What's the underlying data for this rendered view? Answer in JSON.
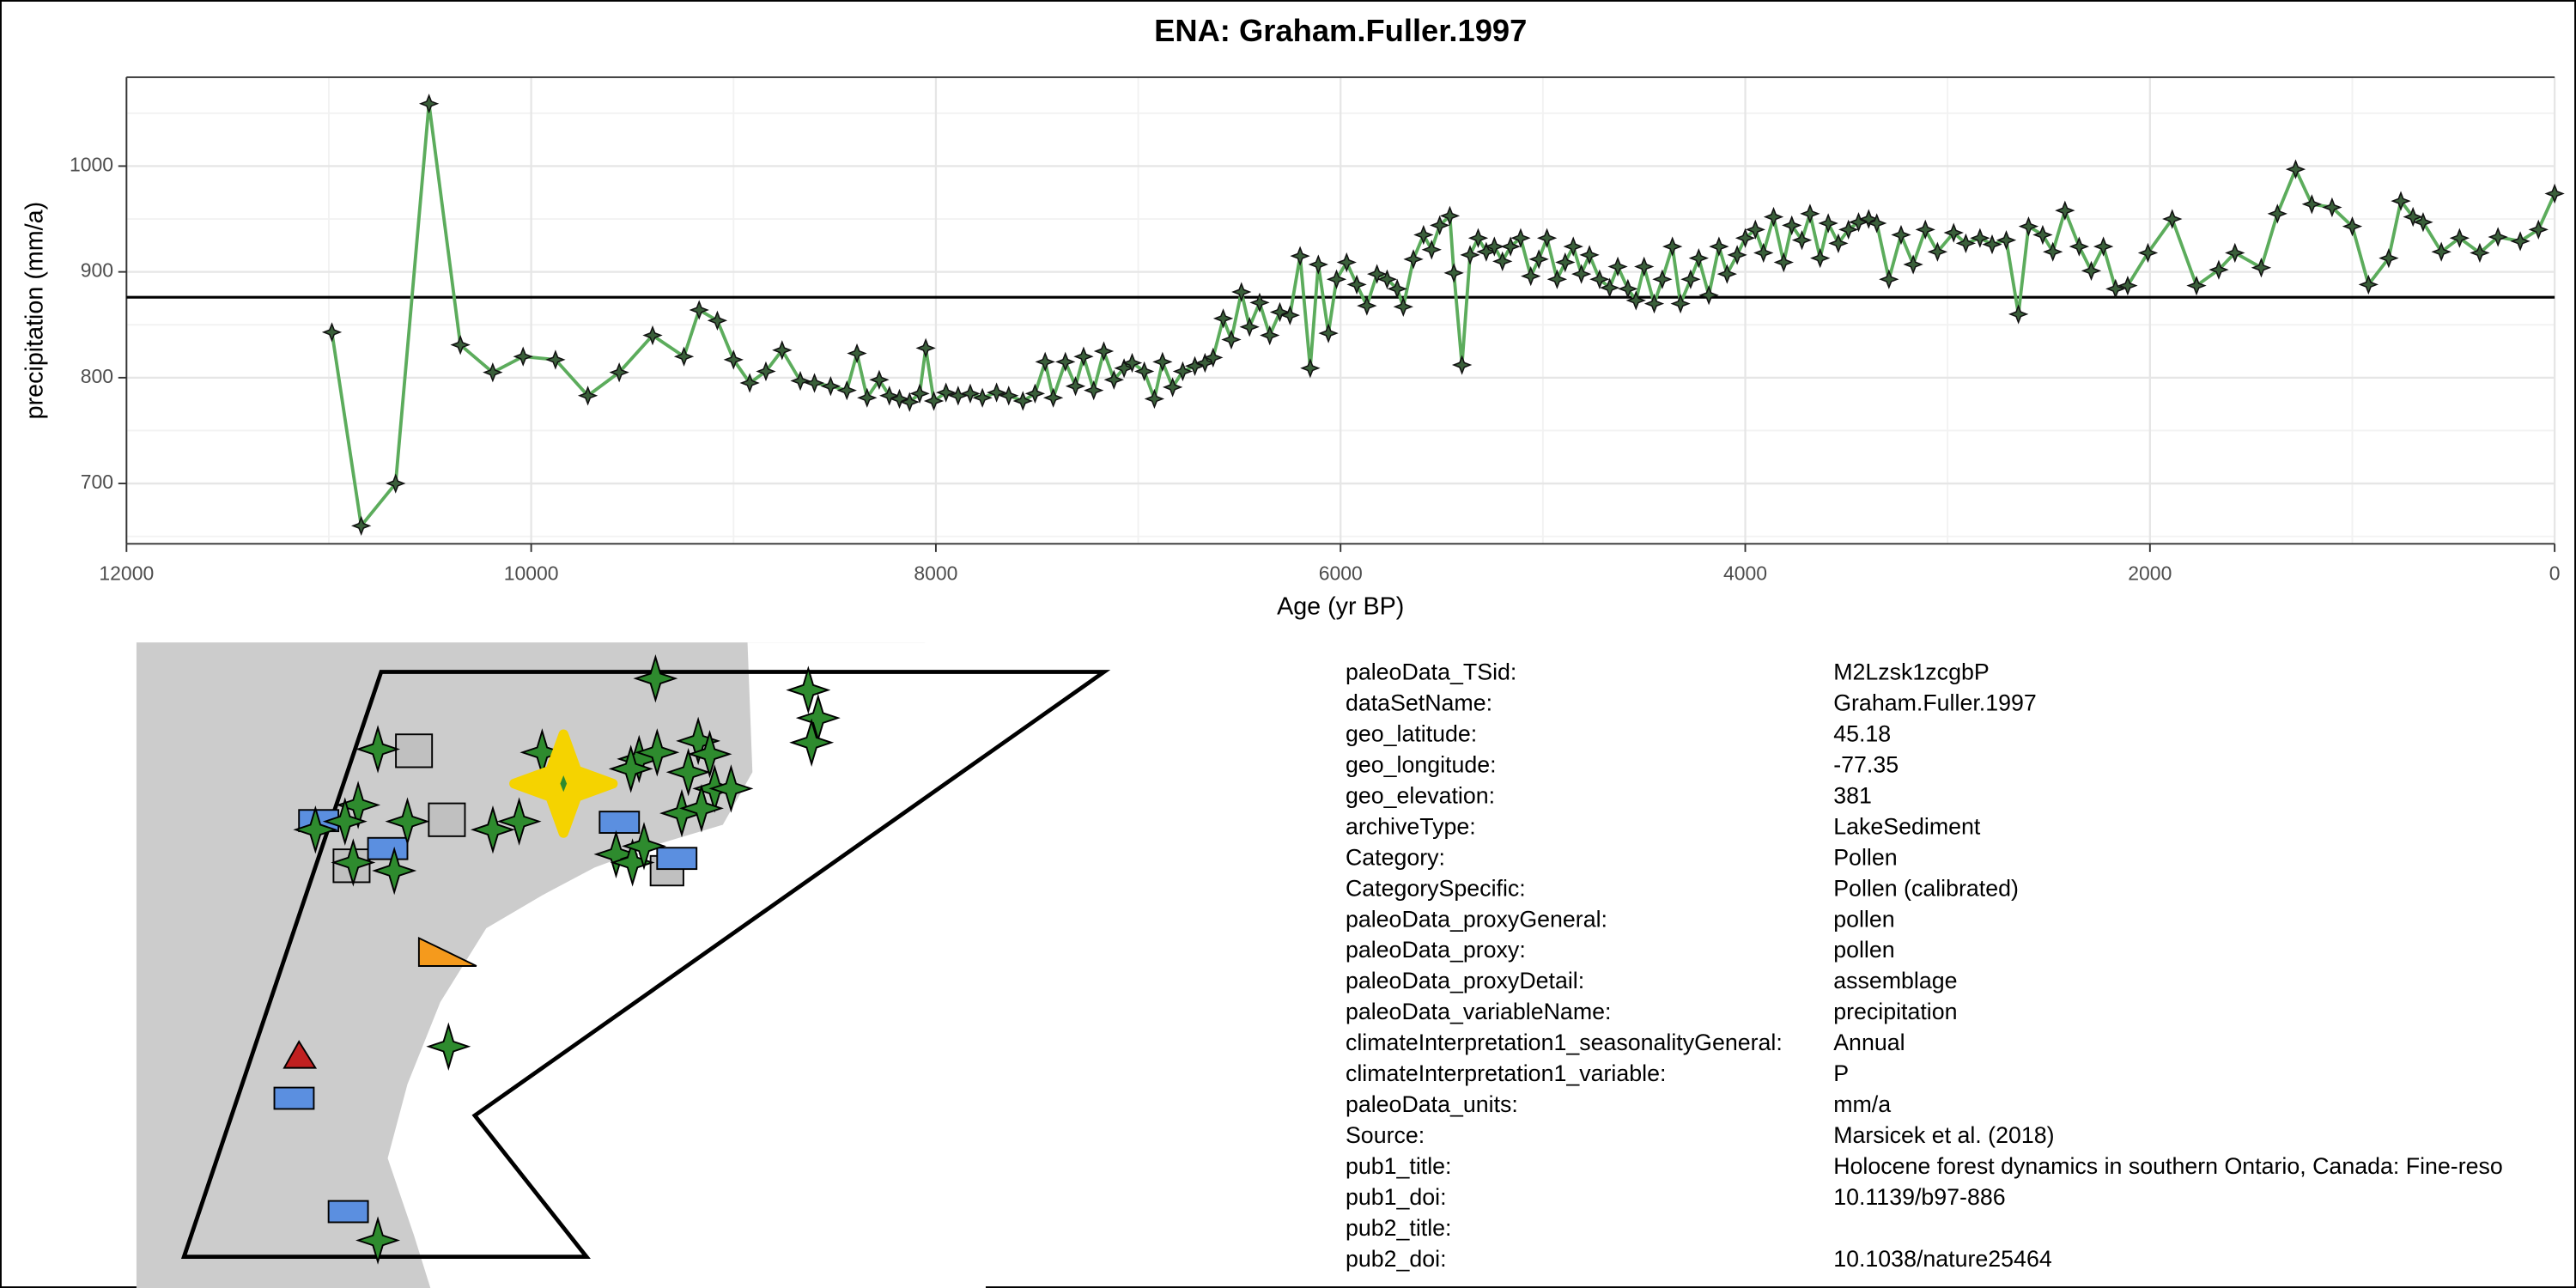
{
  "chart_data": {
    "type": "line",
    "title": "ENA: Graham.Fuller.1997",
    "xlabel": "Age (yr BP)",
    "ylabel": "precipitation (mm/a)",
    "xlim": [
      12000,
      0
    ],
    "ylim": [
      643,
      1084
    ],
    "xticks": [
      12000,
      10000,
      8000,
      6000,
      4000,
      2000,
      0
    ],
    "yticks": [
      700,
      800,
      900,
      1000
    ],
    "grid": true,
    "hline": 876,
    "color": "#5cac5c",
    "x": [
      10985,
      10840,
      10670,
      10505,
      10350,
      10190,
      10040,
      9880,
      9720,
      9565,
      9400,
      9245,
      9170,
      9080,
      9000,
      8920,
      8840,
      8760,
      8670,
      8600,
      8520,
      8440,
      8390,
      8340,
      8280,
      8230,
      8180,
      8130,
      8080,
      8050,
      8010,
      7950,
      7890,
      7830,
      7770,
      7700,
      7640,
      7570,
      7510,
      7460,
      7420,
      7360,
      7310,
      7270,
      7220,
      7170,
      7120,
      7070,
      7030,
      6970,
      6920,
      6880,
      6830,
      6780,
      6720,
      6670,
      6630,
      6580,
      6540,
      6490,
      6450,
      6400,
      6350,
      6300,
      6250,
      6200,
      6150,
      6110,
      6060,
      6020,
      5970,
      5920,
      5870,
      5820,
      5770,
      5720,
      5690,
      5640,
      5590,
      5550,
      5510,
      5460,
      5440,
      5400,
      5360,
      5320,
      5280,
      5240,
      5200,
      5160,
      5110,
      5060,
      5020,
      4980,
      4930,
      4890,
      4850,
      4810,
      4770,
      4720,
      4670,
      4630,
      4580,
      4540,
      4500,
      4450,
      4410,
      4360,
      4320,
      4270,
      4230,
      4180,
      4130,
      4090,
      4040,
      4000,
      3950,
      3910,
      3860,
      3810,
      3770,
      3720,
      3680,
      3630,
      3590,
      3540,
      3490,
      3440,
      3390,
      3350,
      3290,
      3230,
      3170,
      3110,
      3050,
      2970,
      2910,
      2840,
      2780,
      2710,
      2650,
      2600,
      2530,
      2480,
      2420,
      2350,
      2290,
      2230,
      2170,
      2110,
      2010,
      1890,
      1770,
      1660,
      1580,
      1450,
      1370,
      1280,
      1200,
      1100,
      1000,
      920,
      820,
      760,
      700,
      650,
      560,
      470,
      370,
      280,
      170,
      80,
      0
    ],
    "values": [
      843,
      660,
      700,
      1059,
      831,
      805,
      820,
      817,
      783,
      805,
      840,
      820,
      864,
      854,
      817,
      795,
      806,
      826,
      797,
      795,
      792,
      788,
      823,
      781,
      798,
      783,
      780,
      777,
      785,
      828,
      778,
      786,
      783,
      785,
      781,
      786,
      783,
      778,
      785,
      815,
      781,
      815,
      792,
      820,
      788,
      825,
      798,
      809,
      814,
      806,
      780,
      815,
      791,
      806,
      811,
      814,
      819,
      856,
      836,
      881,
      848,
      871,
      840,
      862,
      859,
      915,
      809,
      907,
      842,
      893,
      909,
      888,
      868,
      898,
      893,
      884,
      867,
      912,
      935,
      921,
      944,
      953,
      899,
      812,
      916,
      932,
      919,
      924,
      910,
      924,
      932,
      896,
      912,
      932,
      893,
      909,
      924,
      898,
      916,
      893,
      885,
      905,
      884,
      873,
      905,
      870,
      893,
      924,
      870,
      893,
      913,
      878,
      924,
      898,
      916,
      932,
      940,
      918,
      952,
      909,
      944,
      930,
      955,
      913,
      946,
      927,
      940,
      947,
      950,
      946,
      893,
      935,
      907,
      940,
      919,
      937,
      927,
      932,
      926,
      930,
      860,
      943,
      935,
      919,
      958,
      924,
      901,
      924,
      884,
      887,
      918,
      950,
      887,
      902,
      918,
      904,
      955,
      997,
      964,
      961,
      943,
      888,
      913,
      967,
      952,
      947,
      919,
      932,
      918,
      933,
      929,
      940,
      974
    ]
  },
  "metadata": {
    "rows": [
      [
        "paleoData_TSid:",
        "M2Lzsk1zcgbP"
      ],
      [
        "dataSetName:",
        "Graham.Fuller.1997"
      ],
      [
        "geo_latitude:",
        "45.18"
      ],
      [
        "geo_longitude:",
        "-77.35"
      ],
      [
        "geo_elevation:",
        "381"
      ],
      [
        "archiveType:",
        "LakeSediment"
      ],
      [
        "Category:",
        "Pollen"
      ],
      [
        "CategorySpecific:",
        "Pollen (calibrated)"
      ],
      [
        "paleoData_proxyGeneral:",
        "pollen"
      ],
      [
        "paleoData_proxy:",
        "pollen"
      ],
      [
        "paleoData_proxyDetail:",
        "assemblage"
      ],
      [
        "paleoData_variableName:",
        "precipitation"
      ],
      [
        "climateInterpretation1_seasonalityGeneral:",
        "Annual"
      ],
      [
        "climateInterpretation1_variable:",
        "P"
      ],
      [
        "paleoData_units:",
        "mm/a"
      ],
      [
        "Source:",
        "Marsicek et al. (2018)"
      ],
      [
        "pub1_title:",
        "Holocene forest dynamics in southern Ontario, Canada: Fine-reso"
      ],
      [
        "pub1_doi:",
        "10.1139/b97-886"
      ],
      [
        "pub2_title:"
      ],
      [
        "pub2_doi:",
        "10.1038/nature25464"
      ]
    ]
  }
}
